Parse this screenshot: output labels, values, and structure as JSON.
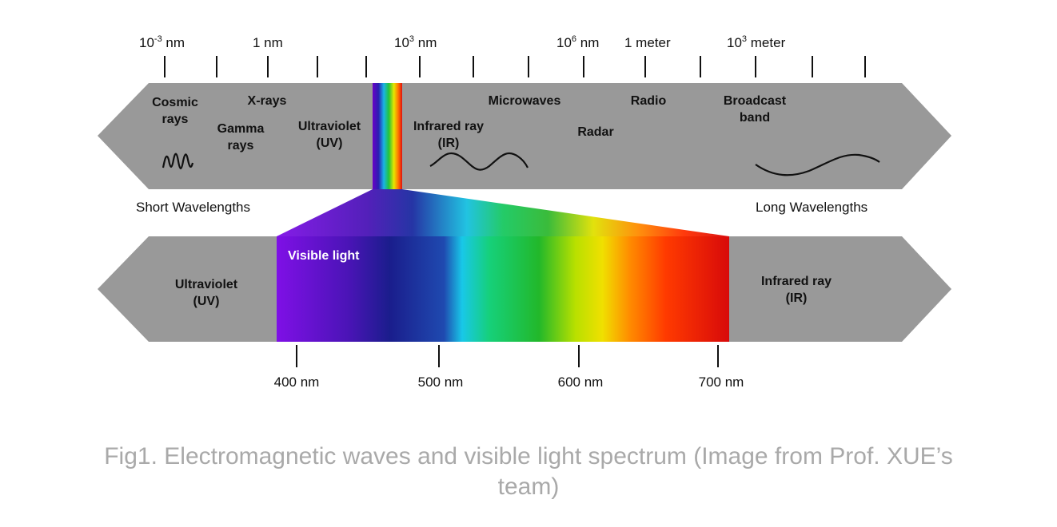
{
  "top_scale": {
    "labels": [
      {
        "base": "10",
        "sup": "-3",
        "unit": " nm"
      },
      {
        "base": "1 nm",
        "sup": "",
        "unit": ""
      },
      {
        "base": "10",
        "sup": "3",
        "unit": " nm"
      },
      {
        "base": "10",
        "sup": "6",
        "unit": " nm"
      },
      {
        "base": "1 meter",
        "sup": "",
        "unit": ""
      },
      {
        "base": "10",
        "sup": "3",
        "unit": " meter"
      }
    ]
  },
  "spectrum_bands": {
    "cosmic": [
      "Cosmic",
      "rays"
    ],
    "xrays": [
      "X-rays"
    ],
    "gamma": [
      "Gamma",
      "rays"
    ],
    "ultraviolet": [
      "Ultraviolet",
      "(UV)"
    ],
    "infrared": [
      "Infrared ray",
      "(IR)"
    ],
    "microwaves": [
      "Microwaves"
    ],
    "radar": [
      "Radar"
    ],
    "radio": [
      "Radio"
    ],
    "broadcast": [
      "Broadcast",
      "band"
    ]
  },
  "side_labels": {
    "short": "Short Wavelengths",
    "long": "Long Wavelengths"
  },
  "visible_bar": {
    "title": "Visible light",
    "uv": [
      "Ultraviolet",
      "(UV)"
    ],
    "ir": [
      "Infrared ray",
      "(IR)"
    ]
  },
  "bottom_scale": {
    "labels": [
      "400 nm",
      "500 nm",
      "600 nm",
      "700 nm"
    ]
  },
  "caption": {
    "line1": "Fig1. Electromagnetic waves and visible light spectrum (Image from Prof. XUE’s",
    "line2": "team)"
  },
  "colors": {
    "bar_gray": "#999999",
    "caption_gray": "#a9a9a9",
    "visible_title": "#ffffff"
  }
}
